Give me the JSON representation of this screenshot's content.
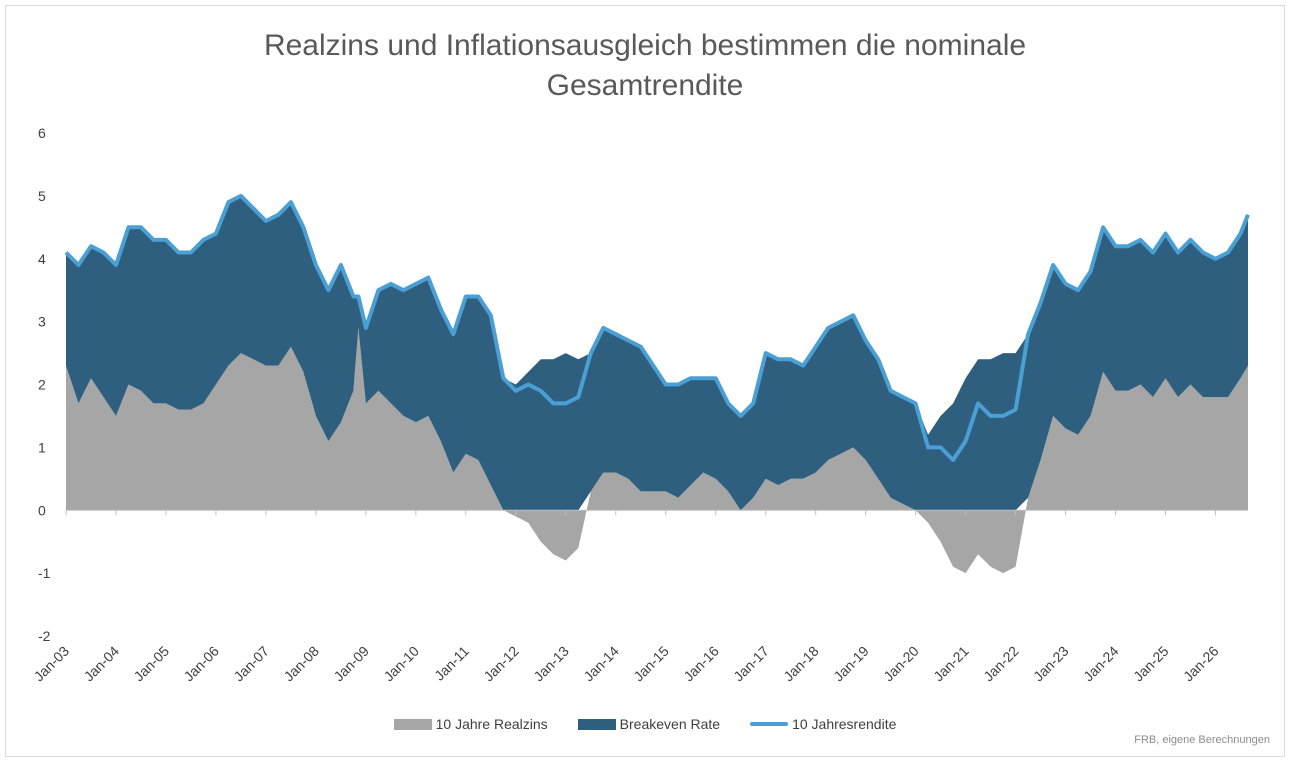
{
  "chart_data": {
    "type": "area",
    "title_line1": "Realzins und Inflationsausgleich bestimmen die nominale",
    "title_line2": "Gesamtrendite",
    "ylim": [
      -2,
      6
    ],
    "yticks": [
      "-2",
      "-1",
      "0",
      "1",
      "2",
      "3",
      "4",
      "5",
      "6"
    ],
    "xlim": [
      2003.0,
      2026.65
    ],
    "xtick_labels": [
      "Jan-03",
      "Jan-04",
      "Jan-05",
      "Jan-06",
      "Jan-07",
      "Jan-08",
      "Jan-09",
      "Jan-10",
      "Jan-11",
      "Jan-12",
      "Jan-13",
      "Jan-14",
      "Jan-15",
      "Jan-16",
      "Jan-17",
      "Jan-18",
      "Jan-19",
      "Jan-20",
      "Jan-21",
      "Jan-22",
      "Jan-23",
      "Jan-24",
      "Jan-25",
      "Jan-26"
    ],
    "grid": false,
    "legend_position": "bottom",
    "series": [
      {
        "name": "10 Jahre Realzins",
        "kind": "area",
        "color": "#a6a6a6",
        "x": [
          2003.0,
          2003.25,
          2003.5,
          2003.75,
          2004.0,
          2004.25,
          2004.5,
          2004.75,
          2005.0,
          2005.25,
          2005.5,
          2005.75,
          2006.0,
          2006.25,
          2006.5,
          2006.75,
          2007.0,
          2007.25,
          2007.5,
          2007.75,
          2008.0,
          2008.25,
          2008.5,
          2008.75,
          2008.85,
          2009.0,
          2009.25,
          2009.5,
          2009.75,
          2010.0,
          2010.25,
          2010.5,
          2010.75,
          2011.0,
          2011.25,
          2011.5,
          2011.75,
          2012.0,
          2012.25,
          2012.5,
          2012.75,
          2013.0,
          2013.25,
          2013.5,
          2013.75,
          2014.0,
          2014.25,
          2014.5,
          2014.75,
          2015.0,
          2015.25,
          2015.5,
          2015.75,
          2016.0,
          2016.25,
          2016.5,
          2016.75,
          2017.0,
          2017.25,
          2017.5,
          2017.75,
          2018.0,
          2018.25,
          2018.5,
          2018.75,
          2019.0,
          2019.25,
          2019.5,
          2019.75,
          2020.0,
          2020.25,
          2020.5,
          2020.75,
          2021.0,
          2021.25,
          2021.5,
          2021.75,
          2022.0,
          2022.25,
          2022.5,
          2022.75,
          2023.0,
          2023.25,
          2023.5,
          2023.75,
          2024.0,
          2024.25,
          2024.5,
          2024.75,
          2025.0,
          2025.25,
          2025.5,
          2025.75,
          2026.0,
          2026.25,
          2026.5,
          2026.65
        ],
        "y": [
          2.3,
          1.7,
          2.1,
          1.8,
          1.5,
          2.0,
          1.9,
          1.7,
          1.7,
          1.6,
          1.6,
          1.7,
          2.0,
          2.3,
          2.5,
          2.4,
          2.3,
          2.3,
          2.6,
          2.2,
          1.5,
          1.1,
          1.4,
          1.9,
          2.9,
          1.7,
          1.9,
          1.7,
          1.5,
          1.4,
          1.5,
          1.1,
          0.6,
          0.9,
          0.8,
          0.4,
          0.0,
          -0.1,
          -0.2,
          -0.5,
          -0.7,
          -0.8,
          -0.6,
          0.3,
          0.6,
          0.6,
          0.5,
          0.3,
          0.3,
          0.3,
          0.2,
          0.4,
          0.6,
          0.5,
          0.3,
          0.0,
          0.2,
          0.5,
          0.4,
          0.5,
          0.5,
          0.6,
          0.8,
          0.9,
          1.0,
          0.8,
          0.5,
          0.2,
          0.1,
          0.0,
          -0.2,
          -0.5,
          -0.9,
          -1.0,
          -0.7,
          -0.9,
          -1.0,
          -0.9,
          0.2,
          0.8,
          1.5,
          1.3,
          1.2,
          1.5,
          2.2,
          1.9,
          1.9,
          2.0,
          1.8,
          2.1,
          1.8,
          2.0,
          1.8,
          1.8,
          1.8,
          2.1,
          2.3
        ]
      },
      {
        "name": "Breakeven Rate",
        "kind": "area",
        "color": "#2e5f7f",
        "x": [
          2003.0,
          2003.25,
          2003.5,
          2003.75,
          2004.0,
          2004.25,
          2004.5,
          2004.75,
          2005.0,
          2005.25,
          2005.5,
          2005.75,
          2006.0,
          2006.25,
          2006.5,
          2006.75,
          2007.0,
          2007.25,
          2007.5,
          2007.75,
          2008.0,
          2008.25,
          2008.5,
          2008.75,
          2008.85,
          2009.0,
          2009.25,
          2009.5,
          2009.75,
          2010.0,
          2010.25,
          2010.5,
          2010.75,
          2011.0,
          2011.25,
          2011.5,
          2011.75,
          2012.0,
          2012.25,
          2012.5,
          2012.75,
          2013.0,
          2013.25,
          2013.5,
          2013.75,
          2014.0,
          2014.25,
          2014.5,
          2014.75,
          2015.0,
          2015.25,
          2015.5,
          2015.75,
          2016.0,
          2016.25,
          2016.5,
          2016.75,
          2017.0,
          2017.25,
          2017.5,
          2017.75,
          2018.0,
          2018.25,
          2018.5,
          2018.75,
          2019.0,
          2019.25,
          2019.5,
          2019.75,
          2020.0,
          2020.25,
          2020.5,
          2020.75,
          2021.0,
          2021.25,
          2021.5,
          2021.75,
          2022.0,
          2022.25,
          2022.5,
          2022.75,
          2023.0,
          2023.25,
          2023.5,
          2023.75,
          2024.0,
          2024.25,
          2024.5,
          2024.75,
          2025.0,
          2025.25,
          2025.5,
          2025.75,
          2026.0,
          2026.25,
          2026.5,
          2026.65
        ],
        "y": [
          1.8,
          2.2,
          2.1,
          2.3,
          2.4,
          2.5,
          2.6,
          2.6,
          2.6,
          2.5,
          2.5,
          2.6,
          2.4,
          2.6,
          2.5,
          2.4,
          2.3,
          2.4,
          2.3,
          2.3,
          2.4,
          2.4,
          2.5,
          1.5,
          0.5,
          1.2,
          1.6,
          1.9,
          2.0,
          2.2,
          2.2,
          2.1,
          2.2,
          2.5,
          2.6,
          2.7,
          2.1,
          2.0,
          2.2,
          2.4,
          2.4,
          2.5,
          2.4,
          2.2,
          2.3,
          2.2,
          2.2,
          2.3,
          2.0,
          1.7,
          1.8,
          1.7,
          1.5,
          1.6,
          1.4,
          1.5,
          1.5,
          2.0,
          2.0,
          1.9,
          1.8,
          2.0,
          2.1,
          2.1,
          2.1,
          1.9,
          1.9,
          1.7,
          1.7,
          1.7,
          1.2,
          1.5,
          1.7,
          2.1,
          2.4,
          2.4,
          2.5,
          2.5,
          2.6,
          2.5,
          2.4,
          2.3,
          2.3,
          2.3,
          2.3,
          2.3,
          2.3,
          2.3,
          2.3,
          2.3,
          2.3,
          2.3,
          2.3,
          2.2,
          2.3,
          2.3,
          2.4
        ]
      },
      {
        "name": "10 Jahresrendite",
        "kind": "line",
        "color": "#4a9fd5",
        "x": [
          2003.0,
          2003.25,
          2003.5,
          2003.75,
          2004.0,
          2004.25,
          2004.5,
          2004.75,
          2005.0,
          2005.25,
          2005.5,
          2005.75,
          2006.0,
          2006.25,
          2006.5,
          2006.75,
          2007.0,
          2007.25,
          2007.5,
          2007.75,
          2008.0,
          2008.25,
          2008.5,
          2008.75,
          2008.85,
          2009.0,
          2009.25,
          2009.5,
          2009.75,
          2010.0,
          2010.25,
          2010.5,
          2010.75,
          2011.0,
          2011.25,
          2011.5,
          2011.75,
          2012.0,
          2012.25,
          2012.5,
          2012.75,
          2013.0,
          2013.25,
          2013.5,
          2013.75,
          2014.0,
          2014.25,
          2014.5,
          2014.75,
          2015.0,
          2015.25,
          2015.5,
          2015.75,
          2016.0,
          2016.25,
          2016.5,
          2016.75,
          2017.0,
          2017.25,
          2017.5,
          2017.75,
          2018.0,
          2018.25,
          2018.5,
          2018.75,
          2019.0,
          2019.25,
          2019.5,
          2019.75,
          2020.0,
          2020.25,
          2020.5,
          2020.75,
          2021.0,
          2021.25,
          2021.5,
          2021.75,
          2022.0,
          2022.25,
          2022.5,
          2022.75,
          2023.0,
          2023.25,
          2023.5,
          2023.75,
          2024.0,
          2024.25,
          2024.5,
          2024.75,
          2025.0,
          2025.25,
          2025.5,
          2025.75,
          2026.0,
          2026.25,
          2026.5,
          2026.65
        ],
        "y": [
          4.1,
          3.9,
          4.2,
          4.1,
          3.9,
          4.5,
          4.5,
          4.3,
          4.3,
          4.1,
          4.1,
          4.3,
          4.4,
          4.9,
          5.0,
          4.8,
          4.6,
          4.7,
          4.9,
          4.5,
          3.9,
          3.5,
          3.9,
          3.4,
          3.4,
          2.9,
          3.5,
          3.6,
          3.5,
          3.6,
          3.7,
          3.2,
          2.8,
          3.4,
          3.4,
          3.1,
          2.1,
          1.9,
          2.0,
          1.9,
          1.7,
          1.7,
          1.8,
          2.5,
          2.9,
          2.8,
          2.7,
          2.6,
          2.3,
          2.0,
          2.0,
          2.1,
          2.1,
          2.1,
          1.7,
          1.5,
          1.7,
          2.5,
          2.4,
          2.4,
          2.3,
          2.6,
          2.9,
          3.0,
          3.1,
          2.7,
          2.4,
          1.9,
          1.8,
          1.7,
          1.0,
          1.0,
          0.8,
          1.1,
          1.7,
          1.5,
          1.5,
          1.6,
          2.8,
          3.3,
          3.9,
          3.6,
          3.5,
          3.8,
          4.5,
          4.2,
          4.2,
          4.3,
          4.1,
          4.4,
          4.1,
          4.3,
          4.1,
          4.0,
          4.1,
          4.4,
          4.7
        ]
      }
    ]
  },
  "legend": {
    "items": [
      {
        "label": "10 Jahre Realzins",
        "color": "#a6a6a6"
      },
      {
        "label": "Breakeven Rate",
        "color": "#2e5f7f"
      },
      {
        "label": "10 Jahresrendite",
        "color": "#4a9fd5"
      }
    ]
  },
  "source_note": "FRB, eigene Berechnungen"
}
